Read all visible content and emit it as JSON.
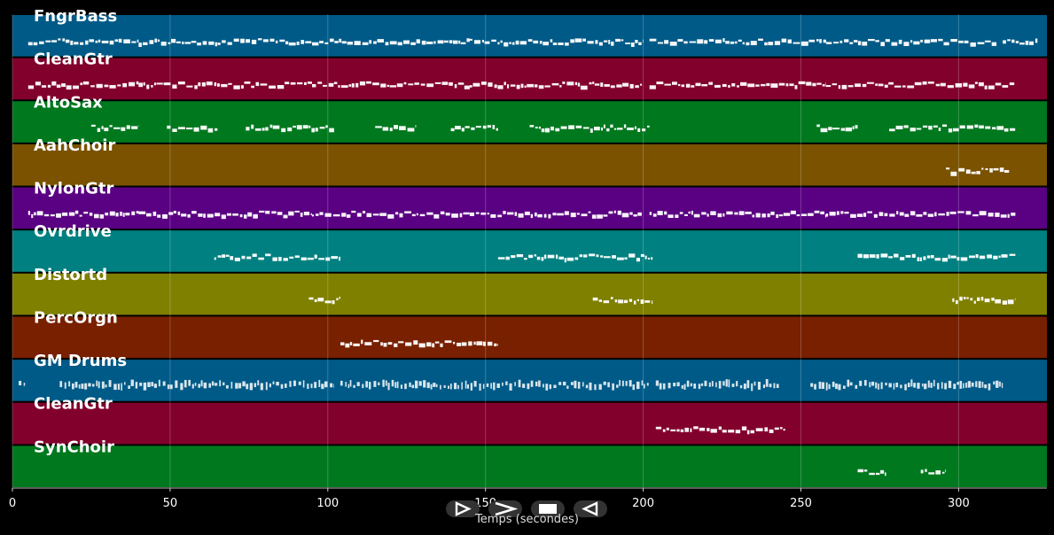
{
  "chart_data": {
    "type": "piano-roll",
    "title": "",
    "xlabel": "Temps (secondes)",
    "ylabel": "",
    "xlim": [
      0,
      328
    ],
    "xticks": [
      0,
      50,
      100,
      150,
      200,
      250,
      300
    ],
    "grid": true,
    "tracks": [
      {
        "name": "FngrBass",
        "color": "#005a87",
        "segments": [
          [
            5,
            40
          ],
          [
            40,
            95
          ],
          [
            95,
            145
          ],
          [
            145,
            200
          ],
          [
            202,
            258
          ],
          [
            258,
            312
          ],
          [
            314,
            325
          ]
        ]
      },
      {
        "name": "CleanGtr",
        "color": "#82002c",
        "segments": [
          [
            5,
            40
          ],
          [
            40,
            95
          ],
          [
            95,
            145
          ],
          [
            145,
            200
          ],
          [
            202,
            258
          ],
          [
            258,
            318
          ]
        ]
      },
      {
        "name": "AltoSax",
        "color": "#00781e",
        "segments": [
          [
            25,
            40
          ],
          [
            49,
            65
          ],
          [
            74,
            102
          ],
          [
            115,
            128
          ],
          [
            139,
            154
          ],
          [
            164,
            202
          ],
          [
            255,
            268
          ],
          [
            278,
            318
          ]
        ]
      },
      {
        "name": "AahChoir",
        "color": "#7a5200",
        "segments": [
          [
            296,
            316
          ]
        ]
      },
      {
        "name": "NylonGtr",
        "color": "#5a0082",
        "segments": [
          [
            5,
            40
          ],
          [
            40,
            95
          ],
          [
            95,
            145
          ],
          [
            145,
            200
          ],
          [
            202,
            258
          ],
          [
            258,
            318
          ]
        ]
      },
      {
        "name": "Ovrdrive",
        "color": "#008080",
        "segments": [
          [
            64,
            104
          ],
          [
            154,
            203
          ],
          [
            268,
            318
          ]
        ]
      },
      {
        "name": "Distortd",
        "color": "#7f7f00",
        "segments": [
          [
            94,
            104
          ],
          [
            184,
            203
          ],
          [
            298,
            318
          ]
        ]
      },
      {
        "name": "PercOrgn",
        "color": "#782000",
        "segments": [
          [
            104,
            154
          ]
        ]
      },
      {
        "name": "GM Drums",
        "color": "#005a87",
        "segments": [
          [
            2,
            4
          ],
          [
            15,
            102
          ],
          [
            104,
            202
          ],
          [
            204,
            243
          ],
          [
            253,
            314
          ]
        ]
      },
      {
        "name": "CleanGtr",
        "color": "#82002c",
        "segments": [
          [
            204,
            245
          ]
        ]
      },
      {
        "name": "SynChoir",
        "color": "#00781e",
        "segments": [
          [
            268,
            277
          ],
          [
            288,
            296
          ]
        ]
      }
    ]
  },
  "controls": {
    "play_icon": "play-icon",
    "forward_icon": "fast-forward-icon",
    "stop_icon": "stop-icon",
    "back_icon": "rewind-icon"
  }
}
